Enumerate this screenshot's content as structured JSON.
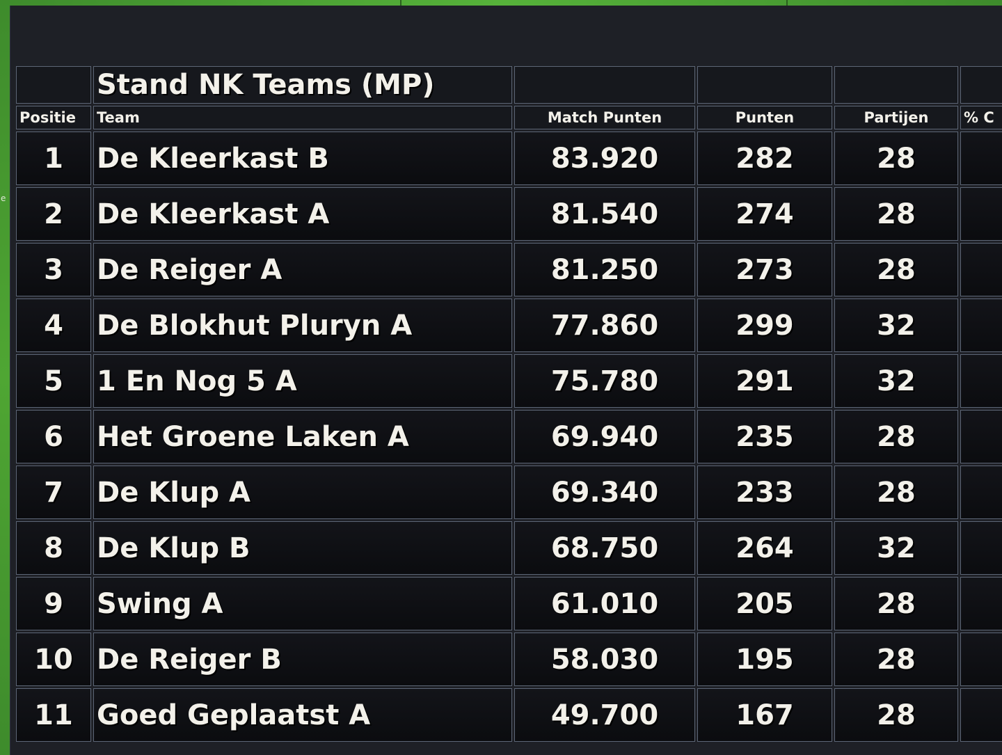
{
  "edge_text": "e",
  "standings": {
    "title": "Stand NK Teams (MP)",
    "columns": {
      "position": "Positie",
      "team": "Team",
      "match_points": "Match Punten",
      "points": "Punten",
      "games": "Partijen",
      "percent": "% C"
    },
    "rows": [
      {
        "position": "1",
        "team": "De Kleerkast B",
        "match_points": "83.920",
        "points": "282",
        "games": "28"
      },
      {
        "position": "2",
        "team": "De Kleerkast A",
        "match_points": "81.540",
        "points": "274",
        "games": "28"
      },
      {
        "position": "3",
        "team": "De Reiger A",
        "match_points": "81.250",
        "points": "273",
        "games": "28"
      },
      {
        "position": "4",
        "team": "De Blokhut Pluryn A",
        "match_points": "77.860",
        "points": "299",
        "games": "32"
      },
      {
        "position": "5",
        "team": "1 En Nog 5 A",
        "match_points": "75.780",
        "points": "291",
        "games": "32"
      },
      {
        "position": "6",
        "team": "Het Groene Laken A",
        "match_points": "69.940",
        "points": "235",
        "games": "28"
      },
      {
        "position": "7",
        "team": "De Klup A",
        "match_points": "69.340",
        "points": "233",
        "games": "28"
      },
      {
        "position": "8",
        "team": "De Klup B",
        "match_points": "68.750",
        "points": "264",
        "games": "32"
      },
      {
        "position": "9",
        "team": "Swing A",
        "match_points": "61.010",
        "points": "205",
        "games": "28"
      },
      {
        "position": "10",
        "team": "De Reiger B",
        "match_points": "58.030",
        "points": "195",
        "games": "28"
      },
      {
        "position": "11",
        "team": "Goed Geplaatst A",
        "match_points": "49.700",
        "points": "167",
        "games": "28"
      }
    ]
  }
}
